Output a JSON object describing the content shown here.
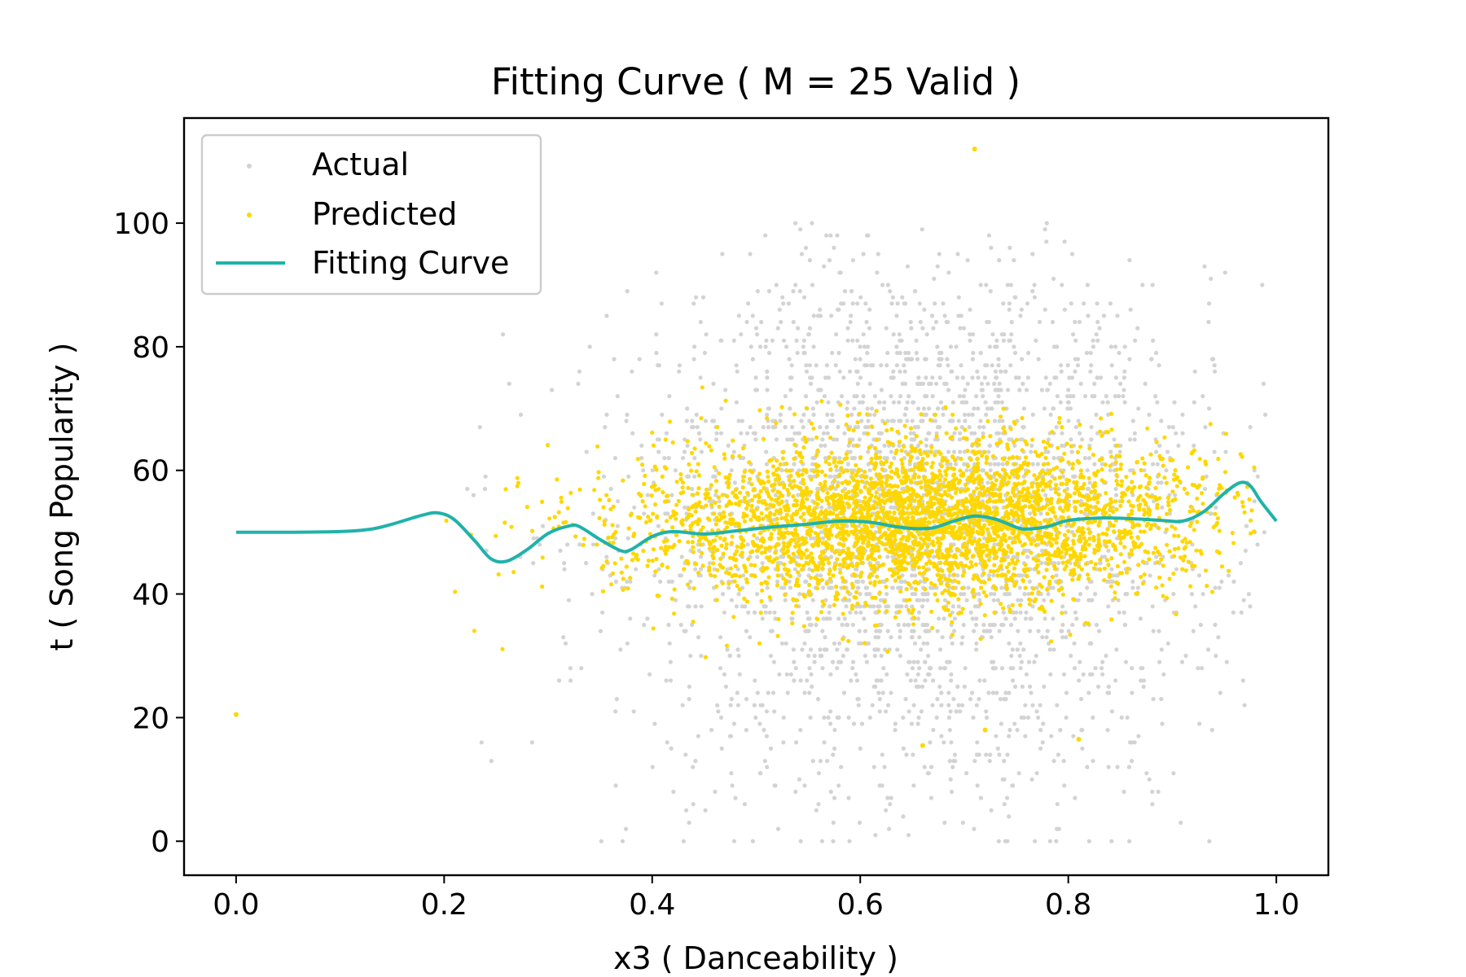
{
  "chart_data": {
    "type": "scatter",
    "title": "Fitting Curve ( M = 25 Valid )",
    "xlabel": "x3 ( Danceability )",
    "ylabel": "t ( Song Popularity )",
    "xlim": [
      -0.05,
      1.05
    ],
    "ylim": [
      -5.5,
      117
    ],
    "xticks": [
      0.0,
      0.2,
      0.4,
      0.6,
      0.8,
      1.0
    ],
    "xtick_labels": [
      "0.0",
      "0.2",
      "0.4",
      "0.6",
      "0.8",
      "1.0"
    ],
    "yticks": [
      0,
      20,
      40,
      60,
      80,
      100
    ],
    "ytick_labels": [
      "0",
      "20",
      "40",
      "60",
      "80",
      "100"
    ],
    "grid": false,
    "legend_position": "top-left",
    "legend": [
      "Actual",
      "Predicted",
      "Fitting Curve"
    ],
    "colors": {
      "actual": "#d3d3d3",
      "predicted": "#ffd700",
      "curve": "#20b2aa"
    },
    "series": [
      {
        "name": "Actual",
        "kind": "scatter",
        "description": "approx. 3000 grey points; x mostly 0.2-1.0 (dense 0.45-0.9), y spread 0-100 (dense 35-70)",
        "distribution": {
          "x_center": 0.66,
          "x_sd": 0.14,
          "y_center": 52,
          "y_sd": 21,
          "count": 3000
        }
      },
      {
        "name": "Predicted",
        "kind": "scatter",
        "description": "approx. 3500 yellow points; y mostly 35-70 around 53; outliers at (0.0, 20.5) and (0.71, 112)",
        "distribution": {
          "x_center": 0.66,
          "x_sd": 0.14,
          "y_center": 53,
          "y_sd": 6.5,
          "count": 3500
        },
        "outliers": [
          [
            0.0,
            20.5
          ],
          [
            0.71,
            112
          ],
          [
            0.66,
            15.5
          ],
          [
            0.72,
            18
          ],
          [
            0.81,
            16.5
          ]
        ]
      },
      {
        "name": "Fitting Curve",
        "kind": "line",
        "x": [
          0.0,
          0.05,
          0.1,
          0.13,
          0.15,
          0.18,
          0.195,
          0.21,
          0.23,
          0.245,
          0.26,
          0.28,
          0.3,
          0.32,
          0.33,
          0.35,
          0.37,
          0.38,
          0.4,
          0.42,
          0.45,
          0.48,
          0.52,
          0.55,
          0.58,
          0.61,
          0.63,
          0.65,
          0.67,
          0.69,
          0.71,
          0.73,
          0.75,
          0.76,
          0.78,
          0.8,
          0.83,
          0.86,
          0.89,
          0.91,
          0.93,
          0.95,
          0.965,
          0.975,
          0.985,
          1.0
        ],
        "y": [
          50.0,
          50.0,
          50.1,
          50.5,
          51.3,
          52.8,
          53.1,
          52.0,
          48.5,
          45.7,
          45.3,
          47.2,
          49.8,
          51.0,
          50.9,
          48.8,
          47.0,
          47.2,
          49.3,
          50.1,
          49.7,
          50.2,
          50.9,
          51.3,
          51.8,
          51.6,
          51.0,
          50.6,
          50.7,
          51.8,
          52.6,
          52.1,
          50.8,
          50.5,
          50.9,
          51.9,
          52.3,
          52.2,
          51.9,
          51.8,
          53.3,
          56.3,
          58.0,
          57.5,
          55.0,
          51.8
        ]
      }
    ]
  }
}
